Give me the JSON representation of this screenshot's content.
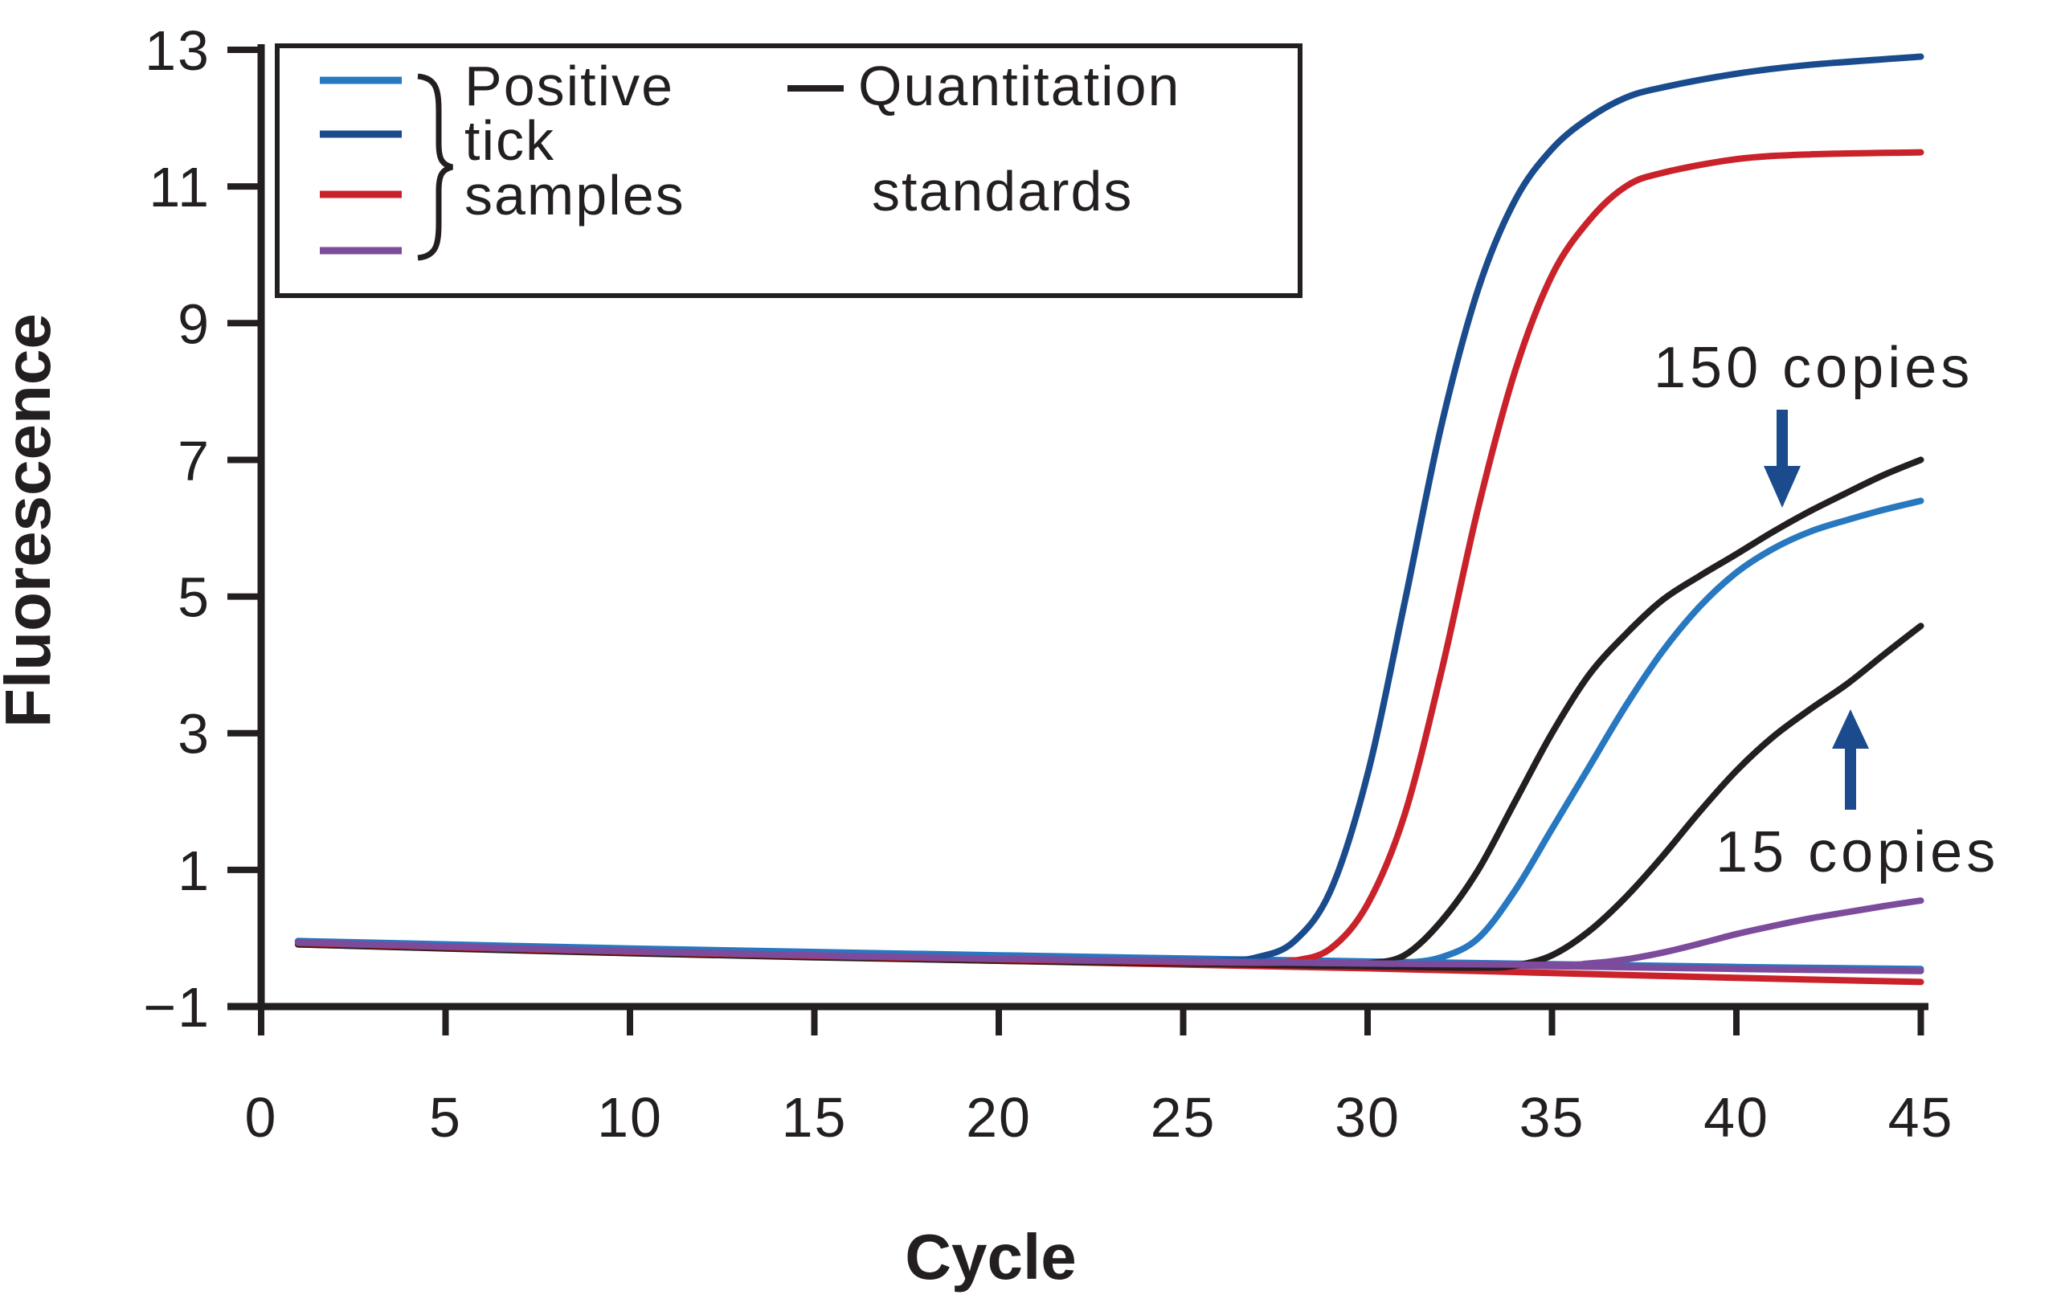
{
  "chart_data": {
    "type": "line",
    "title": "",
    "xlabel": "Cycle",
    "ylabel": "Fluorescence",
    "xlim": [
      0,
      45
    ],
    "ylim": [
      -1,
      13
    ],
    "x_ticks": [
      0,
      5,
      10,
      15,
      20,
      25,
      30,
      35,
      40,
      45
    ],
    "y_ticks": [
      13,
      11,
      9,
      7,
      5,
      3,
      1,
      -1
    ],
    "y_tick_labels": [
      "13",
      "11",
      "9",
      "7",
      "5",
      "3",
      "1",
      "−1"
    ],
    "x_tick_labels": [
      "0",
      "5",
      "10",
      "15",
      "20",
      "25",
      "30",
      "35",
      "40",
      "45"
    ],
    "grid": false,
    "legend_position": "top-left",
    "legend": {
      "samples_lines": [
        "Positive",
        "tick",
        "samples"
      ],
      "samples_colors": [
        "#2778C0",
        "#1A4B8C",
        "#C9222B",
        "#7C4B9C"
      ],
      "standards_lines": [
        "Quantitation",
        "standards"
      ],
      "standards_color": "#231F20"
    },
    "annotations": [
      {
        "text": "150 copies",
        "arrow_direction": "down",
        "arrow_color": "#1B4B8C",
        "points_to_series": "standard-150-copies"
      },
      {
        "text": "15 copies",
        "arrow_direction": "up",
        "arrow_color": "#1B4B8C",
        "points_to_series": "standard-15-copies"
      }
    ],
    "series": [
      {
        "id": "tick-sample-lightblue-flat",
        "group": "Positive tick samples",
        "color": "#2778C0",
        "points": [
          [
            1,
            -0.04
          ],
          [
            10,
            -0.15
          ],
          [
            20,
            -0.25
          ],
          [
            30,
            -0.34
          ],
          [
            35,
            -0.38
          ],
          [
            40,
            -0.42
          ],
          [
            45,
            -0.45
          ]
        ]
      },
      {
        "id": "tick-sample-red-flat",
        "group": "Positive tick samples",
        "color": "#C9222B",
        "points": [
          [
            1,
            -0.09
          ],
          [
            10,
            -0.21
          ],
          [
            20,
            -0.33
          ],
          [
            30,
            -0.44
          ],
          [
            35,
            -0.51
          ],
          [
            40,
            -0.58
          ],
          [
            45,
            -0.64
          ]
        ]
      },
      {
        "id": "tick-sample-purple-flat",
        "group": "Positive tick samples",
        "color": "#7C4B9C",
        "points": [
          [
            1,
            -0.06
          ],
          [
            10,
            -0.18
          ],
          [
            20,
            -0.28
          ],
          [
            30,
            -0.37
          ],
          [
            35,
            -0.41
          ],
          [
            40,
            -0.45
          ],
          [
            45,
            -0.48
          ]
        ]
      },
      {
        "id": "standard-150-copies",
        "group": "Quantitation standards",
        "label": "150 copies",
        "color": "#231F20",
        "points": [
          [
            1,
            -0.08
          ],
          [
            5,
            -0.14
          ],
          [
            10,
            -0.21
          ],
          [
            15,
            -0.27
          ],
          [
            20,
            -0.32
          ],
          [
            25,
            -0.36
          ],
          [
            29,
            -0.39
          ],
          [
            30,
            -0.37
          ],
          [
            31,
            -0.25
          ],
          [
            32,
            0.25
          ],
          [
            33,
            1.0
          ],
          [
            34,
            2.0
          ],
          [
            35,
            3.0
          ],
          [
            36,
            3.85
          ],
          [
            37,
            4.45
          ],
          [
            38,
            4.95
          ],
          [
            39,
            5.3
          ],
          [
            40,
            5.62
          ],
          [
            41,
            5.95
          ],
          [
            42,
            6.25
          ],
          [
            43,
            6.52
          ],
          [
            44,
            6.78
          ],
          [
            45,
            7.0
          ]
        ]
      },
      {
        "id": "standard-15-copies",
        "group": "Quantitation standards",
        "label": "15 copies",
        "color": "#231F20",
        "points": [
          [
            1,
            -0.09
          ],
          [
            5,
            -0.15
          ],
          [
            10,
            -0.22
          ],
          [
            15,
            -0.28
          ],
          [
            20,
            -0.33
          ],
          [
            25,
            -0.37
          ],
          [
            30,
            -0.41
          ],
          [
            33,
            -0.43
          ],
          [
            34,
            -0.4
          ],
          [
            35,
            -0.25
          ],
          [
            36,
            0.1
          ],
          [
            37,
            0.6
          ],
          [
            38,
            1.2
          ],
          [
            39,
            1.85
          ],
          [
            40,
            2.45
          ],
          [
            41,
            2.95
          ],
          [
            42,
            3.35
          ],
          [
            43,
            3.72
          ],
          [
            44,
            4.15
          ],
          [
            45,
            4.57
          ]
        ]
      },
      {
        "id": "tick-sample-darkblue",
        "group": "Positive tick samples",
        "color": "#1A4B8C",
        "points": [
          [
            1,
            -0.05
          ],
          [
            5,
            -0.11
          ],
          [
            10,
            -0.18
          ],
          [
            15,
            -0.24
          ],
          [
            20,
            -0.29
          ],
          [
            24,
            -0.32
          ],
          [
            26,
            -0.33
          ],
          [
            27,
            -0.28
          ],
          [
            28,
            -0.05
          ],
          [
            29,
            0.7
          ],
          [
            30,
            2.4
          ],
          [
            31,
            4.9
          ],
          [
            32,
            7.5
          ],
          [
            33,
            9.5
          ],
          [
            34,
            10.8
          ],
          [
            35,
            11.55
          ],
          [
            36,
            12.0
          ],
          [
            37,
            12.3
          ],
          [
            38,
            12.45
          ],
          [
            40,
            12.65
          ],
          [
            42,
            12.78
          ],
          [
            45,
            12.9
          ]
        ]
      },
      {
        "id": "tick-sample-red",
        "group": "Positive tick samples",
        "color": "#C9222B",
        "points": [
          [
            1,
            -0.07
          ],
          [
            5,
            -0.13
          ],
          [
            10,
            -0.2
          ],
          [
            15,
            -0.26
          ],
          [
            20,
            -0.31
          ],
          [
            25,
            -0.35
          ],
          [
            27,
            -0.36
          ],
          [
            28,
            -0.33
          ],
          [
            29,
            -0.15
          ],
          [
            30,
            0.5
          ],
          [
            31,
            1.8
          ],
          [
            32,
            3.9
          ],
          [
            33,
            6.3
          ],
          [
            34,
            8.3
          ],
          [
            35,
            9.7
          ],
          [
            36,
            10.5
          ],
          [
            37,
            11.0
          ],
          [
            38,
            11.2
          ],
          [
            40,
            11.4
          ],
          [
            42,
            11.47
          ],
          [
            45,
            11.5
          ]
        ]
      },
      {
        "id": "tick-sample-lightblue",
        "group": "Positive tick samples",
        "color": "#2778C0",
        "points": [
          [
            1,
            -0.05
          ],
          [
            5,
            -0.1
          ],
          [
            10,
            -0.17
          ],
          [
            15,
            -0.23
          ],
          [
            20,
            -0.28
          ],
          [
            25,
            -0.33
          ],
          [
            30,
            -0.37
          ],
          [
            31,
            -0.36
          ],
          [
            32,
            -0.28
          ],
          [
            33,
            0.0
          ],
          [
            34,
            0.7
          ],
          [
            35,
            1.6
          ],
          [
            36,
            2.5
          ],
          [
            37,
            3.4
          ],
          [
            38,
            4.2
          ],
          [
            39,
            4.85
          ],
          [
            40,
            5.35
          ],
          [
            41,
            5.7
          ],
          [
            42,
            5.95
          ],
          [
            43,
            6.12
          ],
          [
            44,
            6.27
          ],
          [
            45,
            6.4
          ]
        ]
      },
      {
        "id": "tick-sample-purple",
        "group": "Positive tick samples",
        "color": "#7C4B9C",
        "points": [
          [
            1,
            -0.06
          ],
          [
            5,
            -0.12
          ],
          [
            10,
            -0.19
          ],
          [
            15,
            -0.25
          ],
          [
            20,
            -0.3
          ],
          [
            25,
            -0.34
          ],
          [
            30,
            -0.37
          ],
          [
            35,
            -0.39
          ],
          [
            36,
            -0.37
          ],
          [
            37,
            -0.31
          ],
          [
            38,
            -0.21
          ],
          [
            39,
            -0.08
          ],
          [
            40,
            0.06
          ],
          [
            41,
            0.18
          ],
          [
            42,
            0.29
          ],
          [
            43,
            0.38
          ],
          [
            44,
            0.47
          ],
          [
            45,
            0.55
          ]
        ]
      }
    ]
  },
  "axes": {
    "x": {
      "label": "Cycle"
    },
    "y": {
      "label": "Fluorescence"
    }
  }
}
